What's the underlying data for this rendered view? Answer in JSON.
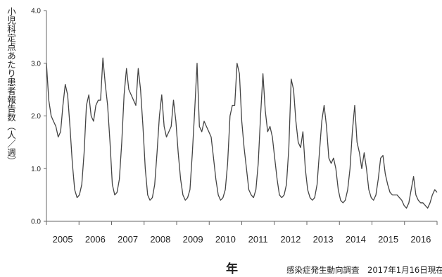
{
  "chart_data": {
    "type": "line",
    "ylabel": "小児科定点あたり患者報告数（人／週）",
    "xlabel": "年",
    "source": "感染症発生動向調査　2017年1月16日現在",
    "ylim": [
      0,
      4.0
    ],
    "yticks": [
      "0.0",
      "1.0",
      "2.0",
      "3.0",
      "4.0"
    ],
    "xticks": [
      "2005",
      "2006",
      "2007",
      "2008",
      "2009",
      "2010",
      "2011",
      "2012",
      "2013",
      "2014",
      "2015",
      "2016"
    ],
    "grid": false,
    "line_color": "#444444",
    "series": [
      {
        "values": [
          3.0,
          2.3,
          2.0,
          1.9,
          1.8,
          1.6,
          1.7,
          2.2,
          2.6,
          2.4,
          1.8,
          1.1,
          0.6,
          0.45,
          0.5,
          0.7,
          1.3,
          2.2,
          2.4,
          2.0,
          1.9,
          2.2,
          2.3,
          2.3,
          3.1,
          2.6,
          2.2,
          1.5,
          0.7,
          0.5,
          0.55,
          0.8,
          1.5,
          2.4,
          2.9,
          2.5,
          2.4,
          2.3,
          2.2,
          2.9,
          2.5,
          1.8,
          1.0,
          0.5,
          0.4,
          0.45,
          0.7,
          1.3,
          2.0,
          2.4,
          1.8,
          1.6,
          1.7,
          1.8,
          2.3,
          1.9,
          1.3,
          0.8,
          0.5,
          0.4,
          0.45,
          0.6,
          1.3,
          2.1,
          3.0,
          1.8,
          1.7,
          1.9,
          1.8,
          1.7,
          1.6,
          1.2,
          0.8,
          0.5,
          0.4,
          0.45,
          0.6,
          1.1,
          2.0,
          2.2,
          2.2,
          3.0,
          2.8,
          1.9,
          1.4,
          1.0,
          0.6,
          0.5,
          0.45,
          0.6,
          1.1,
          2.0,
          2.8,
          2.1,
          1.7,
          1.8,
          1.6,
          1.2,
          0.8,
          0.5,
          0.45,
          0.5,
          0.7,
          1.4,
          2.7,
          2.5,
          1.9,
          1.5,
          1.4,
          1.7,
          1.0,
          0.6,
          0.45,
          0.4,
          0.45,
          0.7,
          1.3,
          1.9,
          2.2,
          1.8,
          1.2,
          1.1,
          1.2,
          1.0,
          0.6,
          0.4,
          0.35,
          0.4,
          0.6,
          1.0,
          1.7,
          2.2,
          1.5,
          1.3,
          1.0,
          1.3,
          1.0,
          0.6,
          0.45,
          0.4,
          0.5,
          0.8,
          1.2,
          1.25,
          0.9,
          0.7,
          0.55,
          0.5,
          0.5,
          0.5,
          0.45,
          0.4,
          0.3,
          0.25,
          0.35,
          0.6,
          0.85,
          0.5,
          0.4,
          0.35,
          0.35,
          0.3,
          0.25,
          0.35,
          0.5,
          0.6,
          0.55
        ]
      }
    ]
  }
}
